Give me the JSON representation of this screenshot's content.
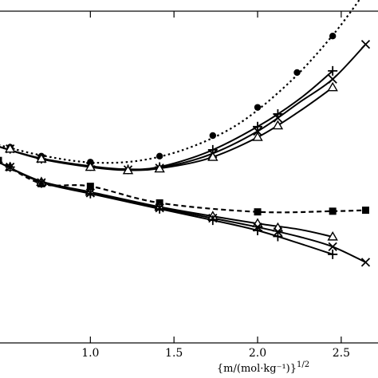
{
  "chart_data": {
    "type": "line",
    "xlabel": "{m/(mol·kg⁻¹)}",
    "xlabel_superscript": "1/2",
    "xlim": [
      0.45,
      2.72
    ],
    "ylim": [
      0,
      10
    ],
    "x_ticks": [
      1.0,
      1.5,
      2.0,
      2.5
    ],
    "x_tick_labels": [
      "1.0",
      "1.5",
      "2.0",
      "2.5"
    ],
    "grid": false,
    "legend": "none",
    "series": [
      {
        "marker": "circle",
        "style": "dotted",
        "points": [
          [
            0.52,
            5.9
          ],
          [
            0.707,
            5.63
          ],
          [
            1.0,
            5.45
          ],
          [
            1.414,
            5.63
          ],
          [
            1.732,
            6.25
          ],
          [
            2.0,
            7.1
          ],
          [
            2.236,
            8.15
          ],
          [
            2.449,
            9.25
          ],
          [
            2.646,
            10.55
          ]
        ],
        "curve": [
          [
            0.45,
            5.97
          ],
          [
            0.7,
            5.66
          ],
          [
            1.0,
            5.44
          ],
          [
            1.3,
            5.5
          ],
          [
            1.6,
            5.9
          ],
          [
            1.9,
            6.65
          ],
          [
            2.2,
            7.9
          ],
          [
            2.45,
            9.28
          ],
          [
            2.646,
            10.6
          ]
        ]
      },
      {
        "marker": "plus",
        "style": "solid",
        "points": [
          [
            0.52,
            5.85
          ],
          [
            0.707,
            5.55
          ],
          [
            1.0,
            5.33
          ],
          [
            1.225,
            5.23
          ],
          [
            1.414,
            5.3
          ],
          [
            1.732,
            5.82
          ],
          [
            2.0,
            6.52
          ],
          [
            2.121,
            6.9
          ],
          [
            2.449,
            8.2
          ]
        ],
        "curve": [
          [
            0.45,
            5.92
          ],
          [
            0.7,
            5.57
          ],
          [
            1.0,
            5.33
          ],
          [
            1.2,
            5.24
          ],
          [
            1.4,
            5.29
          ],
          [
            1.7,
            5.75
          ],
          [
            2.0,
            6.52
          ],
          [
            2.25,
            7.35
          ],
          [
            2.449,
            8.2
          ]
        ]
      },
      {
        "marker": "cross",
        "style": "solid",
        "points": [
          [
            0.52,
            5.85
          ],
          [
            0.707,
            5.55
          ],
          [
            1.0,
            5.32
          ],
          [
            1.225,
            5.22
          ],
          [
            1.414,
            5.27
          ],
          [
            1.732,
            5.7
          ],
          [
            2.0,
            6.38
          ],
          [
            2.121,
            6.78
          ],
          [
            2.449,
            7.95
          ],
          [
            2.646,
            9.0
          ]
        ],
        "curve": [
          [
            0.45,
            5.92
          ],
          [
            0.7,
            5.56
          ],
          [
            1.0,
            5.32
          ],
          [
            1.2,
            5.23
          ],
          [
            1.4,
            5.27
          ],
          [
            1.7,
            5.65
          ],
          [
            2.0,
            6.38
          ],
          [
            2.25,
            7.25
          ],
          [
            2.449,
            7.95
          ],
          [
            2.646,
            9.0
          ]
        ]
      },
      {
        "marker": "triangle",
        "style": "solid",
        "points": [
          [
            0.52,
            5.85
          ],
          [
            0.707,
            5.55
          ],
          [
            1.0,
            5.3
          ],
          [
            1.225,
            5.2
          ],
          [
            1.414,
            5.25
          ],
          [
            1.732,
            5.6
          ],
          [
            2.0,
            6.2
          ],
          [
            2.121,
            6.55
          ],
          [
            2.449,
            7.7
          ]
        ],
        "curve": [
          [
            0.45,
            5.92
          ],
          [
            0.7,
            5.55
          ],
          [
            1.0,
            5.3
          ],
          [
            1.2,
            5.21
          ],
          [
            1.4,
            5.25
          ],
          [
            1.7,
            5.55
          ],
          [
            2.0,
            6.2
          ],
          [
            2.25,
            6.98
          ],
          [
            2.449,
            7.7
          ]
        ]
      },
      {
        "marker": "square",
        "style": "dashed",
        "points": [
          [
            0.45,
            5.5
          ],
          [
            0.707,
            4.8
          ],
          [
            1.0,
            4.72
          ],
          [
            1.414,
            4.22
          ],
          [
            2.0,
            3.95
          ],
          [
            2.449,
            3.97
          ],
          [
            2.646,
            4.0
          ]
        ],
        "curve": [
          [
            0.45,
            5.5
          ],
          [
            0.707,
            4.8
          ],
          [
            1.0,
            4.72
          ],
          [
            1.414,
            4.22
          ],
          [
            2.0,
            3.95
          ],
          [
            2.449,
            3.97
          ],
          [
            2.646,
            4.0
          ]
        ]
      },
      {
        "marker": "triangle",
        "style": "solid",
        "points": [
          [
            0.52,
            5.3
          ],
          [
            0.707,
            4.85
          ],
          [
            1.0,
            4.55
          ],
          [
            1.414,
            4.1
          ],
          [
            1.732,
            3.82
          ],
          [
            2.0,
            3.6
          ],
          [
            2.121,
            3.47
          ],
          [
            2.449,
            3.2
          ]
        ],
        "curve": [
          [
            0.45,
            5.45
          ],
          [
            0.707,
            4.87
          ],
          [
            1.0,
            4.55
          ],
          [
            1.414,
            4.1
          ],
          [
            1.732,
            3.82
          ],
          [
            2.0,
            3.6
          ],
          [
            2.25,
            3.42
          ],
          [
            2.449,
            3.2
          ]
        ]
      },
      {
        "marker": "cross",
        "style": "solid",
        "points": [
          [
            0.52,
            5.3
          ],
          [
            0.707,
            4.83
          ],
          [
            1.0,
            4.52
          ],
          [
            1.414,
            4.07
          ],
          [
            1.732,
            3.76
          ],
          [
            2.0,
            3.49
          ],
          [
            2.121,
            3.35
          ],
          [
            2.449,
            2.9
          ],
          [
            2.646,
            2.43
          ]
        ],
        "curve": [
          [
            0.45,
            5.45
          ],
          [
            0.707,
            4.85
          ],
          [
            1.0,
            4.52
          ],
          [
            1.414,
            4.07
          ],
          [
            1.732,
            3.76
          ],
          [
            2.0,
            3.49
          ],
          [
            2.25,
            3.2
          ],
          [
            2.449,
            2.9
          ],
          [
            2.646,
            2.43
          ]
        ]
      },
      {
        "marker": "plus",
        "style": "solid",
        "points": [
          [
            0.52,
            5.3
          ],
          [
            0.707,
            4.82
          ],
          [
            1.0,
            4.5
          ],
          [
            1.414,
            4.04
          ],
          [
            1.732,
            3.7
          ],
          [
            2.0,
            3.39
          ],
          [
            2.121,
            3.21
          ],
          [
            2.449,
            2.67
          ]
        ],
        "curve": [
          [
            0.45,
            5.45
          ],
          [
            0.707,
            4.84
          ],
          [
            1.0,
            4.5
          ],
          [
            1.414,
            4.04
          ],
          [
            1.732,
            3.7
          ],
          [
            2.0,
            3.39
          ],
          [
            2.25,
            3.0
          ],
          [
            2.449,
            2.67
          ]
        ]
      }
    ]
  }
}
